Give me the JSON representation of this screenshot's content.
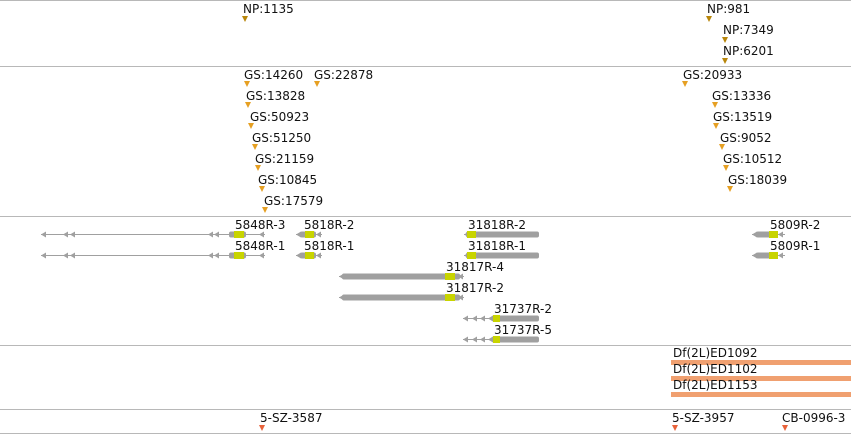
{
  "colors": {
    "track_divider": "#b8b8b8",
    "np_marker": "#b8860b",
    "gs_marker": "#e6a023",
    "gene_body": "#a0a0a0",
    "gene_cds": "#c8d400",
    "deletion_bar": "#f0a070",
    "sz_marker": "#e8623a"
  },
  "tracks": {
    "np_insertions": [
      {
        "label": "NP:1135"
      },
      {
        "label": "NP:981"
      },
      {
        "label": "NP:7349"
      },
      {
        "label": "NP:6201"
      }
    ],
    "gs_insertions": [
      {
        "label": "GS:14260"
      },
      {
        "label": "GS:22878"
      },
      {
        "label": "GS:13828"
      },
      {
        "label": "GS:50923"
      },
      {
        "label": "GS:51250"
      },
      {
        "label": "GS:21159"
      },
      {
        "label": "GS:10845"
      },
      {
        "label": "GS:17579"
      },
      {
        "label": "GS:20933"
      },
      {
        "label": "GS:13336"
      },
      {
        "label": "GS:13519"
      },
      {
        "label": "GS:9052"
      },
      {
        "label": "GS:10512"
      },
      {
        "label": "GS:18039"
      }
    ],
    "transcripts": [
      {
        "label": "5848R-3"
      },
      {
        "label": "5848R-1"
      },
      {
        "label": "5818R-2"
      },
      {
        "label": "5818R-1"
      },
      {
        "label": "31818R-2"
      },
      {
        "label": "31818R-1"
      },
      {
        "label": "31817R-4"
      },
      {
        "label": "31817R-2"
      },
      {
        "label": "31737R-2"
      },
      {
        "label": "31737R-5"
      },
      {
        "label": "5809R-2"
      },
      {
        "label": "5809R-1"
      }
    ],
    "deletions": [
      {
        "label": "Df(2L)ED1092"
      },
      {
        "label": "Df(2L)ED1102"
      },
      {
        "label": "Df(2L)ED1153"
      }
    ],
    "sz_insertions": [
      {
        "label": "5-SZ-3587"
      },
      {
        "label": "5-SZ-3957"
      },
      {
        "label": "CB-0996-3"
      }
    ]
  }
}
